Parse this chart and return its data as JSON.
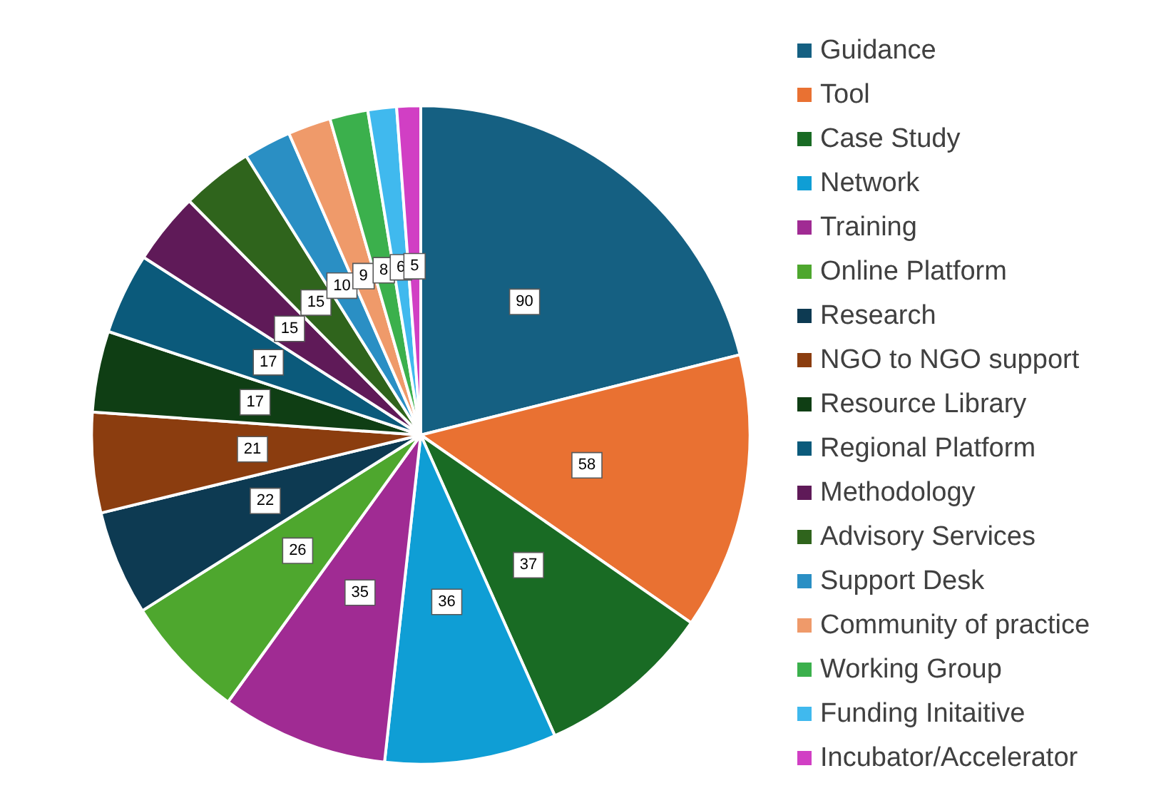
{
  "chart_data": {
    "type": "pie",
    "categories": [
      "Guidance",
      "Tool",
      "Case Study",
      "Network",
      "Training",
      "Online Platform",
      "Research",
      "NGO to NGO support",
      "Resource Library",
      "Regional Platform",
      "Methodology",
      "Advisory Services",
      "Support Desk",
      "Community of practice",
      "Working Group",
      "Funding Initaitive",
      "Incubator/Accelerator"
    ],
    "values": [
      90,
      58,
      37,
      36,
      35,
      26,
      22,
      21,
      17,
      17,
      15,
      15,
      10,
      9,
      8,
      6,
      5
    ],
    "colors": [
      "#156082",
      "#e97132",
      "#196b24",
      "#0f9ed5",
      "#a02b93",
      "#4ea72e",
      "#0d3a52",
      "#8b3d0f",
      "#0f3e14",
      "#0b5a7b",
      "#5f1a58",
      "#2f641c",
      "#2a8fc4",
      "#ef9a6a",
      "#3bb04c",
      "#40b9ee",
      "#d13fc4"
    ],
    "data_labels": true,
    "legend": "right"
  }
}
